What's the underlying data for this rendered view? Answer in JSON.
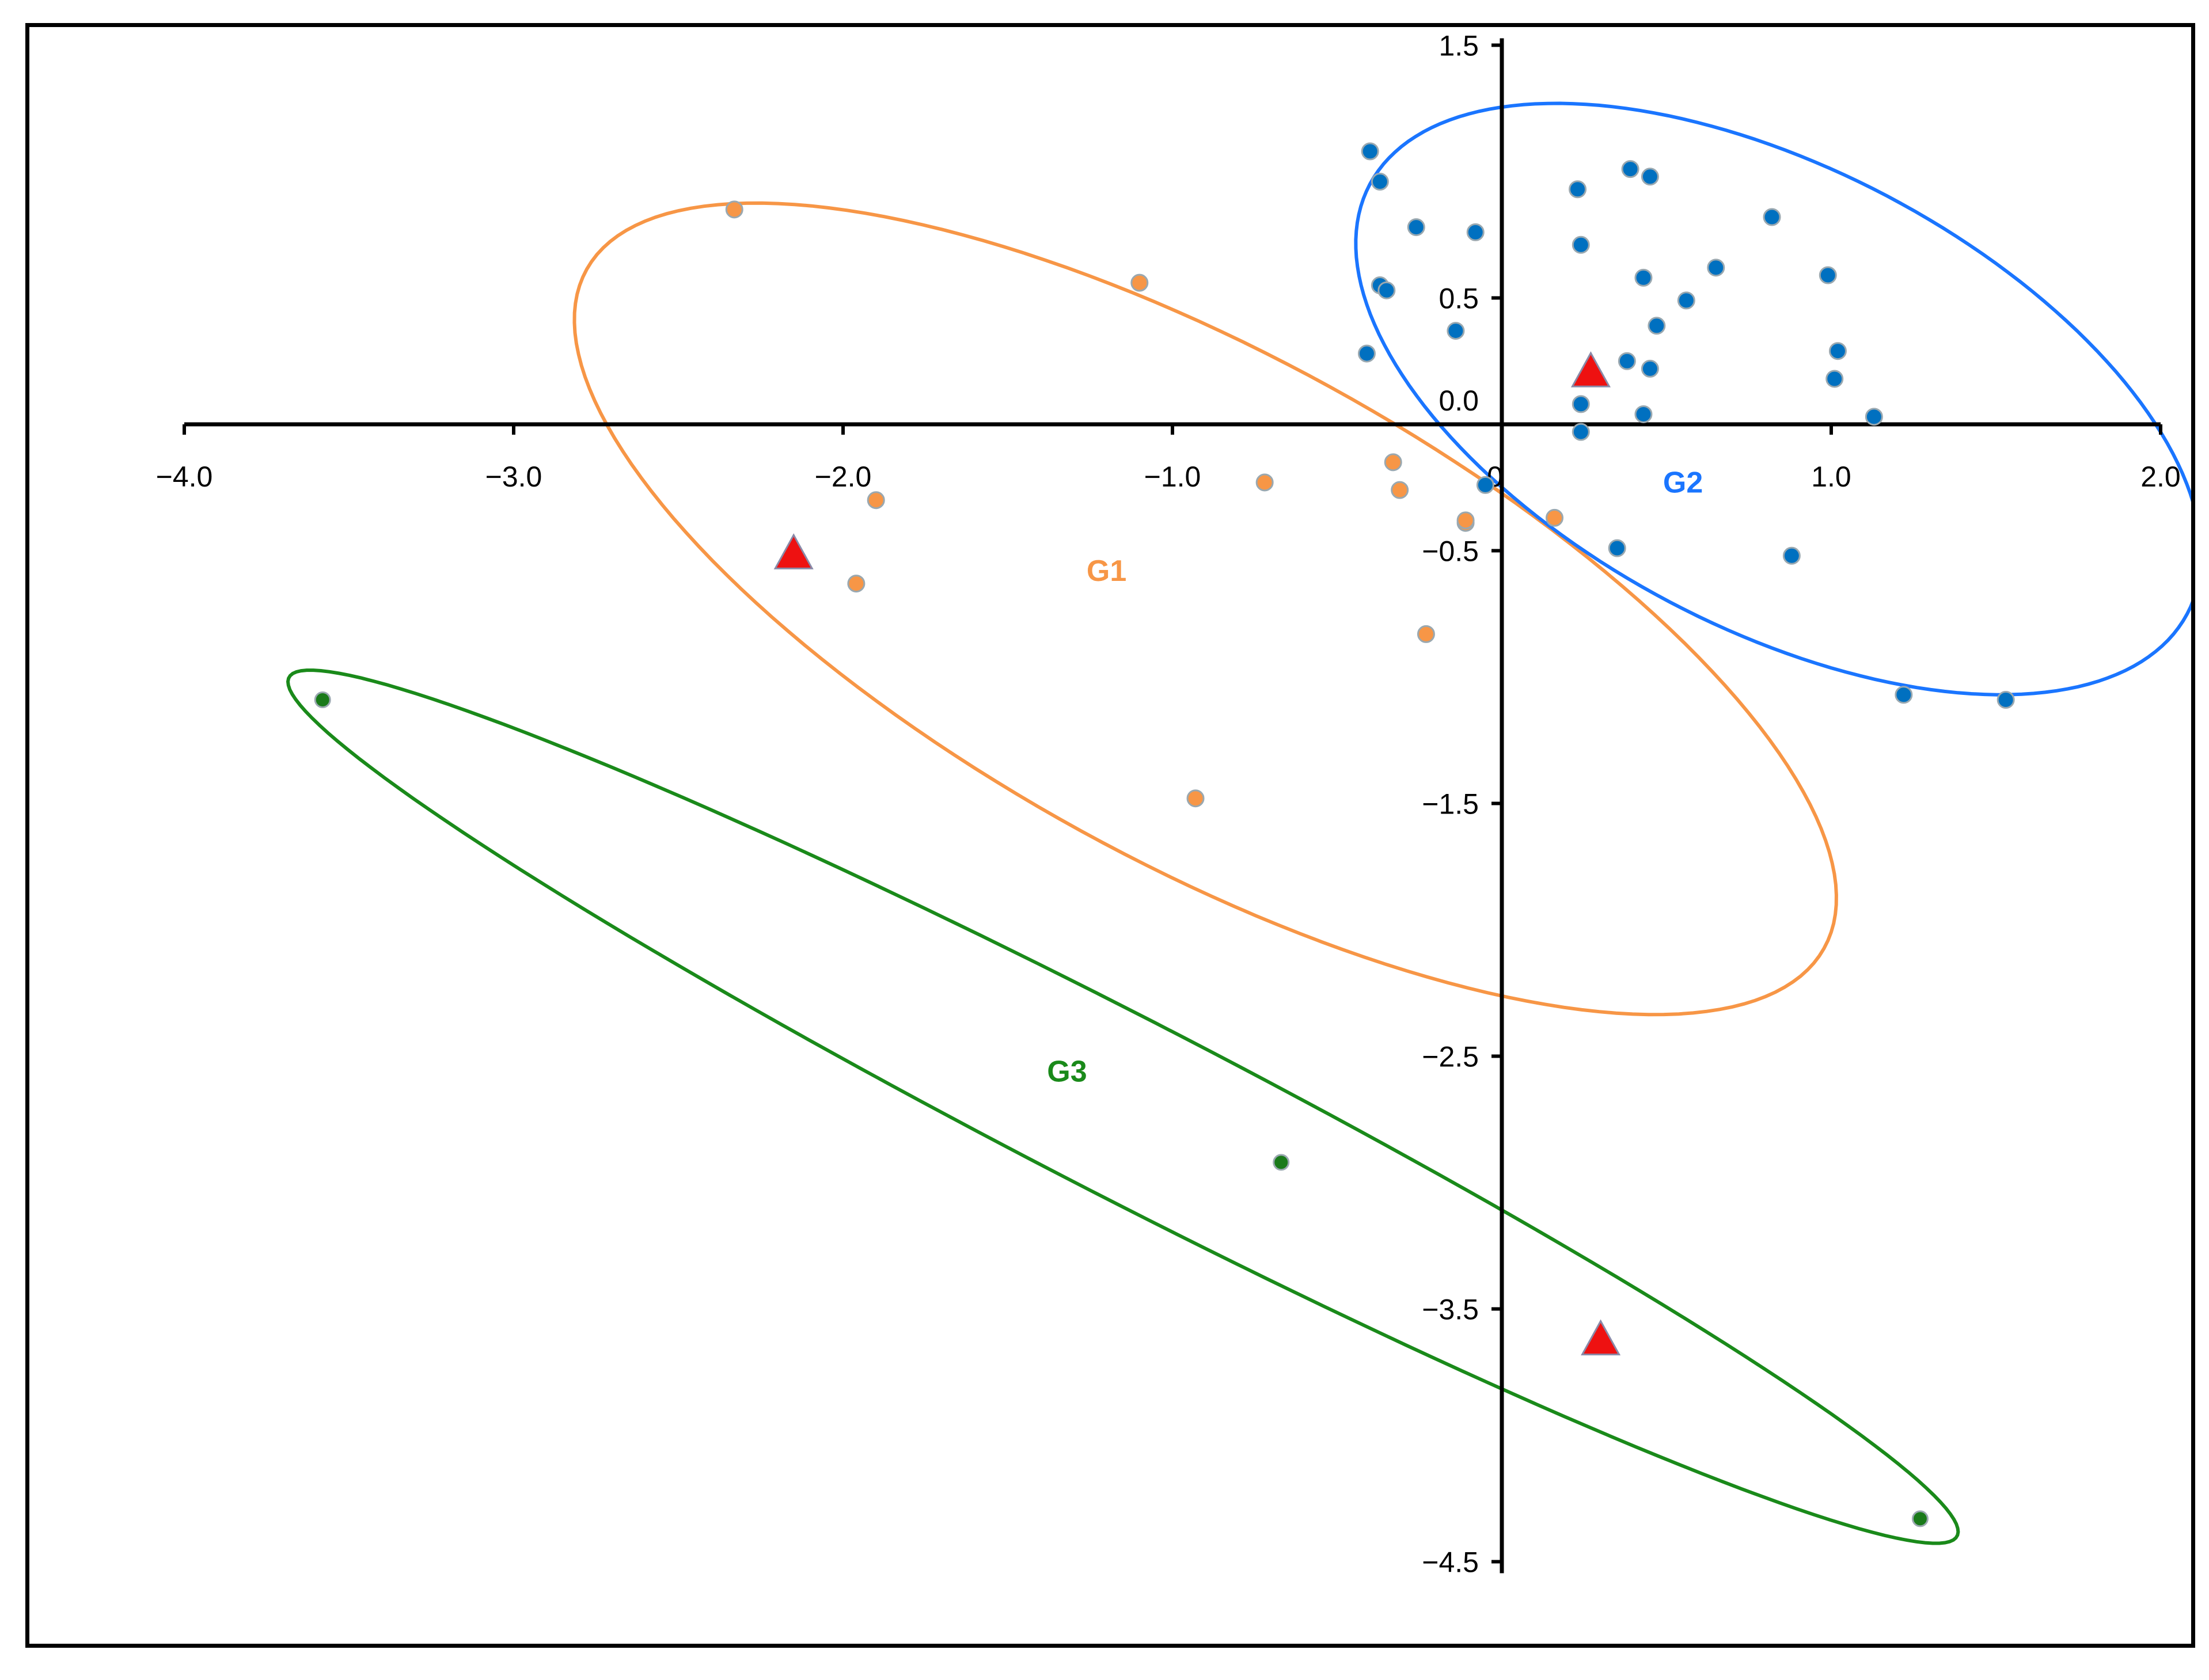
{
  "chart_data": {
    "type": "scatter",
    "title": "",
    "xlabel": "",
    "ylabel": "",
    "xlim": [
      -4.0,
      2.0
    ],
    "ylim": [
      -4.5,
      1.5
    ],
    "x_ticks": [
      -4.0,
      -3.0,
      -2.0,
      -1.0,
      0.0,
      1.0,
      2.0
    ],
    "x_tick_labels": [
      "−4.0",
      "−3.0",
      "−2.0",
      "−1.0",
      "0",
      "1.0",
      "2.0"
    ],
    "y_ticks": [
      1.5,
      0.5,
      0.0,
      -0.5,
      -1.5,
      -2.5,
      -3.5,
      -4.5
    ],
    "y_tick_labels": [
      "1.5",
      "0.5",
      "0.0",
      "−0.5",
      "−1.5",
      "−2.5",
      "−3.5",
      "−4.5"
    ],
    "grid": false,
    "series": [
      {
        "name": "G1",
        "color": "#f79646",
        "marker": "circle",
        "points": [
          [
            -2.33,
            0.85
          ],
          [
            -1.1,
            0.56
          ],
          [
            -1.9,
            -0.3
          ],
          [
            -1.96,
            -0.63
          ],
          [
            -0.72,
            -0.23
          ],
          [
            -0.33,
            -0.15
          ],
          [
            -0.31,
            -0.26
          ],
          [
            -0.11,
            -0.39
          ],
          [
            -0.11,
            -0.38
          ],
          [
            0.16,
            -0.37
          ],
          [
            -0.23,
            -0.83
          ],
          [
            -0.93,
            -1.48
          ]
        ]
      },
      {
        "name": "G2",
        "color": "#0070c0",
        "marker": "circle",
        "points": [
          [
            -0.4,
            1.08
          ],
          [
            -0.37,
            0.96
          ],
          [
            -0.26,
            0.78
          ],
          [
            -0.08,
            0.76
          ],
          [
            -0.37,
            0.55
          ],
          [
            -0.35,
            0.53
          ],
          [
            -0.14,
            0.37
          ],
          [
            -0.41,
            0.28
          ],
          [
            0.23,
            0.93
          ],
          [
            0.39,
            1.01
          ],
          [
            0.45,
            0.98
          ],
          [
            0.24,
            0.71
          ],
          [
            0.43,
            0.58
          ],
          [
            0.65,
            0.62
          ],
          [
            0.82,
            0.82
          ],
          [
            0.99,
            0.59
          ],
          [
            0.56,
            0.49
          ],
          [
            0.47,
            0.39
          ],
          [
            0.38,
            0.25
          ],
          [
            0.45,
            0.22
          ],
          [
            0.24,
            0.08
          ],
          [
            0.43,
            0.04
          ],
          [
            0.24,
            -0.03
          ],
          [
            1.02,
            0.29
          ],
          [
            1.01,
            0.18
          ],
          [
            1.13,
            0.03
          ],
          [
            -0.05,
            -0.24
          ],
          [
            0.35,
            -0.49
          ],
          [
            0.88,
            -0.52
          ],
          [
            1.22,
            -1.07
          ],
          [
            1.53,
            -1.09
          ]
        ]
      },
      {
        "name": "G3",
        "color": "#1a7a1a",
        "marker": "circle",
        "points": [
          [
            -3.58,
            -1.09
          ],
          [
            -0.67,
            -2.92
          ],
          [
            1.27,
            -4.33
          ]
        ]
      },
      {
        "name": "",
        "color": "#ee1111",
        "marker": "triangle",
        "points": [
          [
            -2.15,
            -0.52
          ],
          [
            0.27,
            0.2
          ],
          [
            0.3,
            -3.63
          ]
        ]
      }
    ],
    "group_ellipses": [
      {
        "name": "G1",
        "color": "#f79646",
        "center": [
          -0.9,
          -0.73
        ],
        "semi_axes": [
          2.32,
          0.93
        ],
        "angle_deg": -38
      },
      {
        "name": "G2",
        "color": "#1a75ff",
        "center": [
          0.84,
          0.1
        ],
        "semi_axes": [
          1.52,
          0.84
        ],
        "angle_deg": -40
      },
      {
        "name": "G3",
        "color": "#1a8a1a",
        "center": [
          -1.15,
          -2.7
        ],
        "semi_axes": [
          3.05,
          0.33
        ],
        "angle_deg": -34
      }
    ],
    "group_labels": [
      {
        "text": "G1",
        "color": "#f79646",
        "x": -1.2,
        "y": -0.62
      },
      {
        "text": "G2",
        "color": "#1a75ff",
        "x": 0.55,
        "y": -0.27
      },
      {
        "text": "G3",
        "color": "#1a8a1a",
        "x": -1.32,
        "y": -2.6
      }
    ]
  }
}
